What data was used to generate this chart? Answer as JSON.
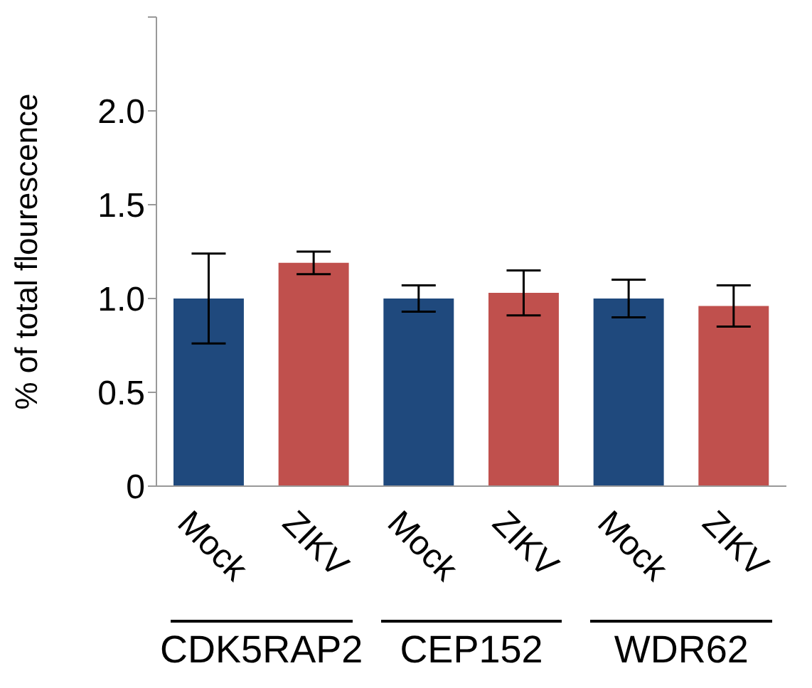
{
  "chart_data": {
    "type": "bar",
    "ylabel": "% of total flourescence",
    "categories": [
      "Mock",
      "ZIKV",
      "Mock",
      "ZIKV",
      "Mock",
      "ZIKV"
    ],
    "values": [
      1.0,
      1.19,
      1.0,
      1.03,
      1.0,
      0.96
    ],
    "colors": [
      "#1f497d",
      "#c0504d",
      "#1f497d",
      "#c0504d",
      "#1f497d",
      "#c0504d"
    ],
    "errors": [
      0.24,
      [
        1.13,
        1.25
      ],
      [
        0.93,
        1.07
      ],
      [
        0.91,
        1.15
      ],
      [
        0.9,
        1.1
      ],
      [
        0.85,
        1.07
      ]
    ],
    "ylim": [
      0,
      2.5
    ],
    "yticks": [
      0,
      0.5,
      {
        "value": 1,
        "label": "1.0"
      },
      1.5,
      {
        "value": 2,
        "label": "2.0"
      },
      {
        "value": 2.5,
        "label": null
      }
    ],
    "grid": false,
    "annotations": [
      "CDK5RAP2",
      "CEP152",
      "WDR62"
    ]
  }
}
